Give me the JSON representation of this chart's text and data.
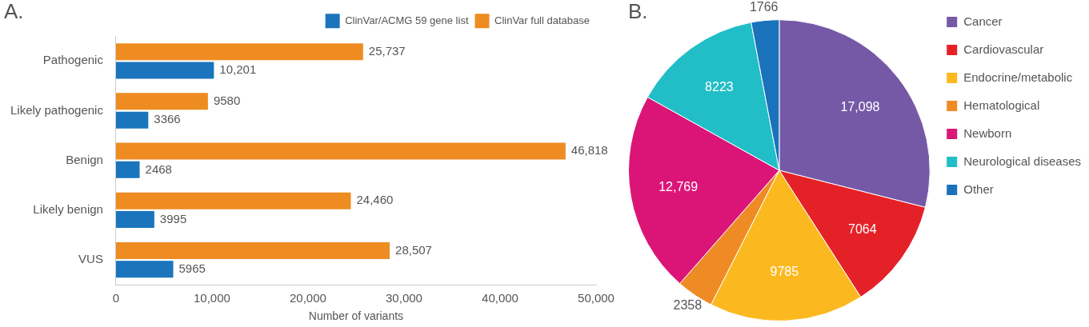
{
  "chart_data": [
    {
      "type": "bar",
      "orientation": "horizontal",
      "title": "A.",
      "xlabel": "Number of variants",
      "categories": [
        "Pathogenic",
        "Likely pathogenic",
        "Benign",
        "Likely benign",
        "VUS"
      ],
      "series": [
        {
          "name": "ClinVar/ACMG 59 gene list",
          "color": "#1a75bc",
          "values": [
            10201,
            3366,
            2468,
            3995,
            5965
          ],
          "value_labels": [
            "10,201",
            "3366",
            "2468",
            "3995",
            "5965"
          ]
        },
        {
          "name": "ClinVar full database",
          "color": "#ee8c22",
          "values": [
            25737,
            9580,
            46818,
            24460,
            28507
          ],
          "value_labels": [
            "25,737",
            "9580",
            "46,818",
            "24,460",
            "28,507"
          ]
        }
      ],
      "xlim": [
        0,
        50000
      ],
      "xticks": [
        0,
        {
          "value": 10000,
          "label": "10,000"
        },
        {
          "value": 20000,
          "label": "20,000"
        },
        {
          "value": 30000,
          "label": "30,000"
        },
        {
          "value": 40000,
          "label": "40,000"
        },
        {
          "value": 50000,
          "label": "50,000"
        }
      ],
      "grid": false,
      "legend": "top right"
    },
    {
      "type": "pie",
      "title": "B.",
      "categories": [
        "Cancer",
        "Cardiovascular",
        "Endocrine/metabolic",
        "Hematological",
        "Newborn",
        "Neurological diseases",
        "Other"
      ],
      "values": [
        17098,
        7064,
        9785,
        2358,
        12769,
        8223,
        1766
      ],
      "value_labels": [
        "17,098",
        "7064",
        "9785",
        "2358",
        "12,769",
        "8223",
        "1766"
      ],
      "colors": [
        "#7559a7",
        "#e52128",
        "#fbb91f",
        "#ef8b25",
        "#db1577",
        "#21bec7",
        "#1a72bb"
      ],
      "legend": "right"
    }
  ]
}
